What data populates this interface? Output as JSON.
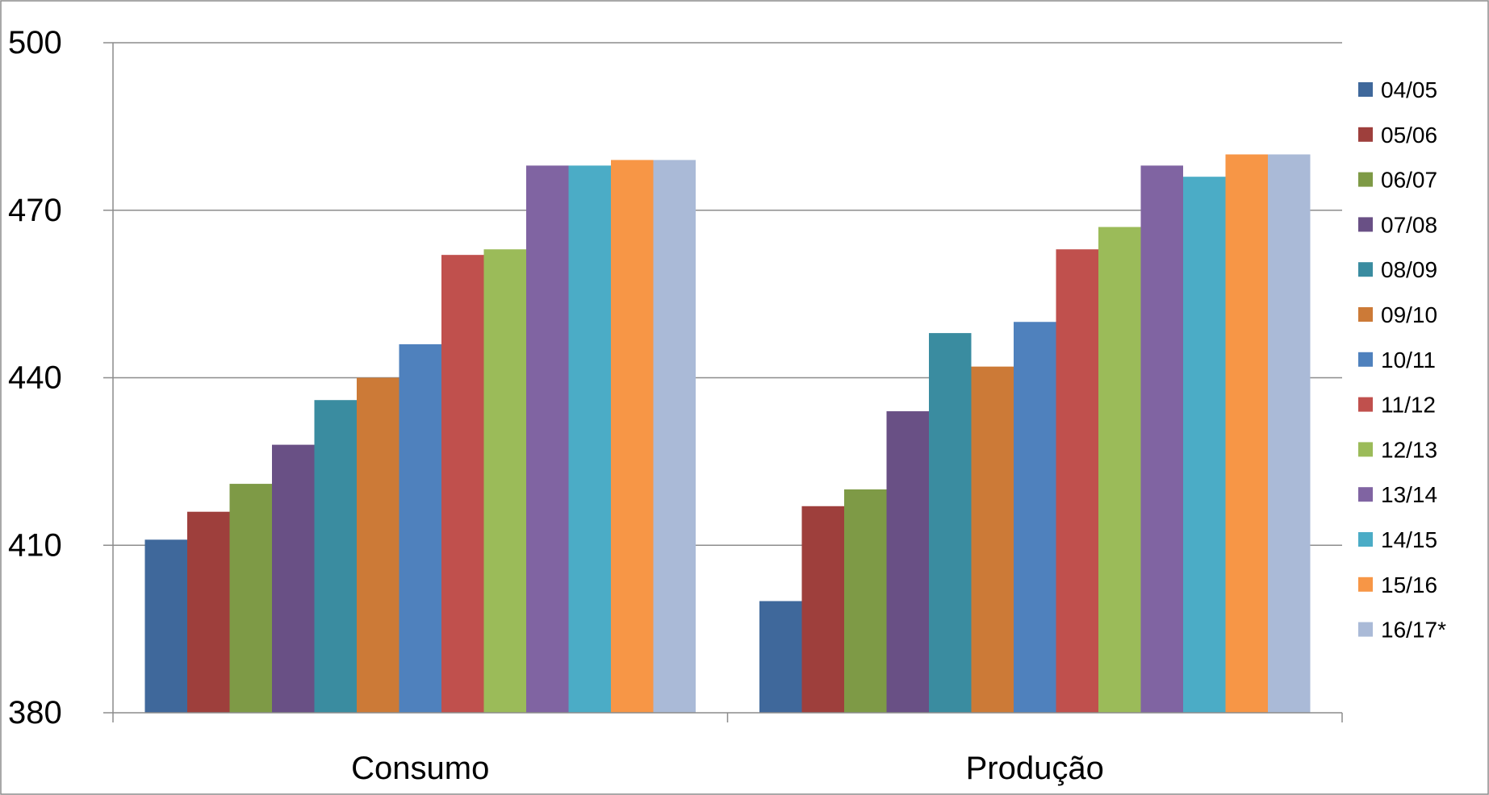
{
  "chart_data": {
    "type": "bar",
    "categories": [
      "Consumo",
      "Produção"
    ],
    "ylim": [
      380,
      500
    ],
    "yticks": [
      380,
      410,
      440,
      470,
      500
    ],
    "grid": true,
    "legend_position": "right",
    "series": [
      {
        "name": "04/05",
        "color": "#3f689b",
        "values": [
          411,
          400
        ]
      },
      {
        "name": "05/06",
        "color": "#9e3f3c",
        "values": [
          416,
          417
        ]
      },
      {
        "name": "06/07",
        "color": "#7e9a46",
        "values": [
          421,
          420
        ]
      },
      {
        "name": "07/08",
        "color": "#695085",
        "values": [
          428,
          434
        ]
      },
      {
        "name": "08/09",
        "color": "#3a8ca0",
        "values": [
          436,
          448
        ]
      },
      {
        "name": "09/10",
        "color": "#cc7a37",
        "values": [
          440,
          442
        ]
      },
      {
        "name": "10/11",
        "color": "#4f81bd",
        "values": [
          446,
          450
        ]
      },
      {
        "name": "11/12",
        "color": "#c0504d",
        "values": [
          462,
          463
        ]
      },
      {
        "name": "12/13",
        "color": "#9bbb59",
        "values": [
          463,
          467
        ]
      },
      {
        "name": "13/14",
        "color": "#8064a2",
        "values": [
          478,
          478
        ]
      },
      {
        "name": "14/15",
        "color": "#4bacc6",
        "values": [
          478,
          476
        ]
      },
      {
        "name": "15/16",
        "color": "#f79646",
        "values": [
          479,
          480
        ]
      },
      {
        "name": "16/17*",
        "color": "#aabad7",
        "values": [
          479,
          480
        ]
      }
    ]
  }
}
